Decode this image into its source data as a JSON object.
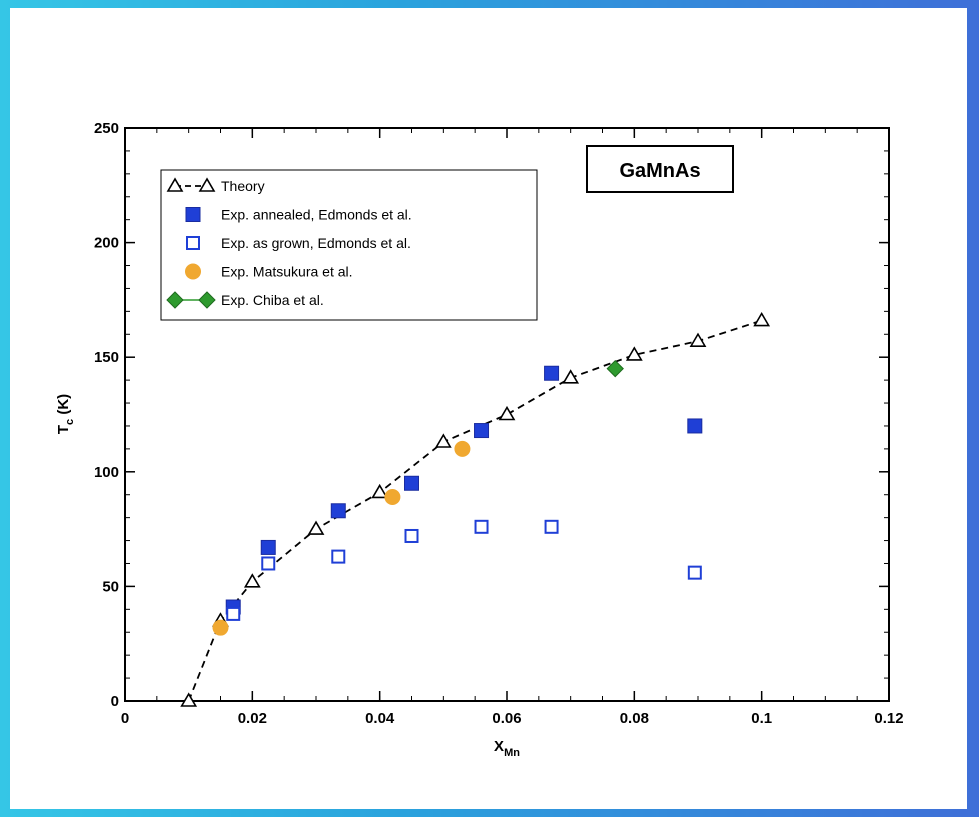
{
  "chart_data": {
    "type": "scatter",
    "title": "",
    "annotation": "GaMnAs",
    "xlabel": {
      "main": "X",
      "sub": "Mn"
    },
    "ylabel": {
      "main": "T",
      "sub": "c",
      "suffix": " (K)"
    },
    "xlim": [
      0,
      0.12
    ],
    "ylim": [
      0,
      250
    ],
    "xticks": [
      0,
      0.02,
      0.04,
      0.06,
      0.08,
      0.1,
      0.12
    ],
    "xtick_labels": [
      "0",
      "0.02",
      "0.04",
      "0.06",
      "0.08",
      "0.1",
      "0.12"
    ],
    "yticks": [
      0,
      50,
      100,
      150,
      200,
      250
    ],
    "ytick_labels": [
      "0",
      "50",
      "100",
      "150",
      "200",
      "250"
    ],
    "grid": false,
    "legend_position": "top-left",
    "series": [
      {
        "name": "Theory",
        "marker": "triangle-open",
        "line": "dashed",
        "color": "#000000",
        "x": [
          0.01,
          0.015,
          0.02,
          0.03,
          0.04,
          0.05,
          0.06,
          0.07,
          0.08,
          0.09,
          0.1
        ],
        "y": [
          0,
          35,
          52,
          75,
          91,
          113,
          125,
          141,
          151,
          157,
          166
        ]
      },
      {
        "name": "Exp. annealed, Edmonds et al.",
        "marker": "square-filled",
        "line": "none",
        "color": "#1f3fd6",
        "x": [
          0.017,
          0.0225,
          0.0335,
          0.045,
          0.056,
          0.067,
          0.0895
        ],
        "y": [
          41,
          67,
          83,
          95,
          118,
          143,
          120
        ]
      },
      {
        "name": "Exp. as grown, Edmonds et al.",
        "marker": "square-open",
        "line": "none",
        "color": "#1f3fd6",
        "x": [
          0.017,
          0.0225,
          0.0335,
          0.045,
          0.056,
          0.067,
          0.0895
        ],
        "y": [
          38,
          60,
          63,
          72,
          76,
          76,
          56
        ]
      },
      {
        "name": "Exp. Matsukura et al.",
        "marker": "circle-filled",
        "line": "none",
        "color": "#f0a830",
        "x": [
          0.015,
          0.042,
          0.053
        ],
        "y": [
          32,
          89,
          110
        ]
      },
      {
        "name": "Exp. Chiba et al.",
        "marker": "diamond-filled",
        "line": "solid",
        "color": "#2e9a2e",
        "x": [
          0.077
        ],
        "y": [
          145
        ]
      }
    ]
  }
}
